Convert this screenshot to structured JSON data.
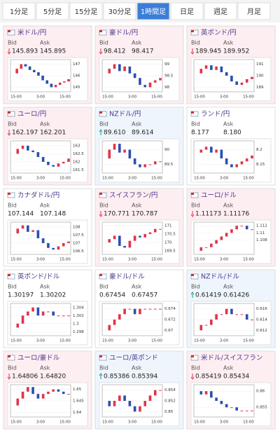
{
  "tabs": [
    "1分足",
    "5分足",
    "15分足",
    "30分足",
    "1時間足",
    "日足",
    "週足",
    "月足"
  ],
  "selected_tab": 4,
  "labels": {
    "bid": "Bid",
    "ask": "Ask"
  },
  "xticks": [
    "15:00",
    "3:00",
    "15:00"
  ],
  "panels": [
    {
      "title": "米ドル/円",
      "dir": "down",
      "bid": "145.893",
      "ask": "145.895",
      "ylim": [
        144.6,
        147.4
      ],
      "yticks": [
        147,
        146,
        145
      ],
      "closes": [
        146.2,
        146.6,
        147.0,
        146.8,
        146.5,
        146.3,
        146.0,
        145.6,
        145.3,
        145.0,
        145.2,
        145.4,
        145.5,
        145.7
      ]
    },
    {
      "title": "豪ドル/円",
      "dir": "down",
      "bid": "98.412",
      "ask": "98.417",
      "ylim": [
        97.8,
        99.2
      ],
      "yticks": [
        99,
        98.5,
        98
      ],
      "closes": [
        98.6,
        98.8,
        99.0,
        98.7,
        98.9,
        98.6,
        98.4,
        98.1,
        98.0,
        98.2,
        98.3,
        98.4
      ]
    },
    {
      "title": "英ポンド/円",
      "dir": "down",
      "bid": "189.945",
      "ask": "189.952",
      "ylim": [
        188.6,
        191.4
      ],
      "yticks": [
        191,
        190,
        189
      ],
      "closes": [
        190.2,
        190.6,
        190.9,
        190.5,
        190.8,
        190.3,
        190.0,
        189.5,
        189.2,
        189.4,
        189.7,
        189.9
      ]
    },
    {
      "title": "ユーロ/円",
      "dir": "down",
      "bid": "162.197",
      "ask": "162.201",
      "ylim": [
        161.3,
        163.3
      ],
      "yticks": [
        163,
        162.5,
        162,
        161.5
      ],
      "closes": [
        162.5,
        162.8,
        163.0,
        162.7,
        162.6,
        162.3,
        162.0,
        161.8,
        161.7,
        161.9,
        162.0,
        162.2
      ]
    },
    {
      "title": "NZドル/円",
      "dir": "up",
      "bid": "89.610",
      "ask": "89.614",
      "ylim": [
        89.2,
        90.3
      ],
      "yticks": [
        90,
        89.5
      ],
      "closes": [
        89.7,
        90.0,
        90.2,
        89.9,
        90.0,
        89.7,
        89.5,
        89.4,
        89.5,
        89.5,
        89.6,
        89.6
      ]
    },
    {
      "title": "ランド/円",
      "dir": "none",
      "bid": "8.177",
      "ask": "8.180",
      "ylim": [
        8.12,
        8.23
      ],
      "yticks": [
        8.2,
        8.15
      ],
      "closes": [
        8.19,
        8.2,
        8.21,
        8.19,
        8.2,
        8.17,
        8.15,
        8.14,
        8.15,
        8.16,
        8.17,
        8.18
      ]
    },
    {
      "title": "カナダドル/円",
      "dir": "none",
      "bid": "107.144",
      "ask": "107.148",
      "ylim": [
        106.3,
        108.3
      ],
      "yticks": [
        108,
        107.5,
        107,
        106.5
      ],
      "closes": [
        107.6,
        107.9,
        108.1,
        107.7,
        107.8,
        107.3,
        107.0,
        106.7,
        106.6,
        106.8,
        107.0,
        107.1
      ]
    },
    {
      "title": "スイスフラン/円",
      "dir": "down",
      "bid": "170.771",
      "ask": "170.787",
      "ylim": [
        169.3,
        171.2
      ],
      "yticks": [
        171,
        170.5,
        170,
        169.5
      ],
      "closes": [
        170.0,
        170.2,
        170.4,
        169.8,
        169.7,
        170.1,
        170.4,
        170.3,
        170.5,
        170.6,
        170.8,
        170.8
      ]
    },
    {
      "title": "ユーロ/ドル",
      "dir": "down",
      "bid": "1.11173",
      "ask": "1.11176",
      "ylim": [
        1.104,
        1.113
      ],
      "yticks": [
        1.112,
        1.11,
        1.108
      ],
      "closes": [
        1.105,
        1.106,
        1.106,
        1.107,
        1.108,
        1.109,
        1.11,
        1.111,
        1.112,
        1.112,
        1.111,
        1.111
      ]
    },
    {
      "title": "英ポンド/ドル",
      "dir": "none",
      "bid": "1.30197",
      "ask": "1.30202",
      "ylim": [
        1.297,
        1.305
      ],
      "yticks": [
        1.304,
        1.302,
        1.3,
        1.298
      ],
      "closes": [
        1.299,
        1.3,
        1.302,
        1.303,
        1.304,
        1.302,
        1.303,
        1.303,
        1.302,
        1.302,
        1.302,
        1.302
      ]
    },
    {
      "title": "豪ドル/ドル",
      "dir": "none",
      "bid": "0.67454",
      "ask": "0.67457",
      "ylim": [
        0.669,
        0.675
      ],
      "yticks": [
        0.674,
        0.672,
        0.67
      ],
      "closes": [
        0.67,
        0.671,
        0.672,
        0.673,
        0.674,
        0.674,
        0.673,
        0.674,
        0.674,
        0.674,
        0.674,
        0.674
      ]
    },
    {
      "title": "NZドル/ドル",
      "dir": "up",
      "bid": "0.61419",
      "ask": "0.61426",
      "ylim": [
        0.611,
        0.617
      ],
      "yticks": [
        0.616,
        0.614,
        0.612
      ],
      "closes": [
        0.612,
        0.613,
        0.613,
        0.614,
        0.615,
        0.615,
        0.616,
        0.615,
        0.615,
        0.615,
        0.614,
        0.614
      ]
    },
    {
      "title": "ユーロ/豪ドル",
      "dir": "down",
      "bid": "1.64806",
      "ask": "1.64820",
      "ylim": [
        1.638,
        1.652
      ],
      "yticks": [
        1.65,
        1.645,
        1.64
      ],
      "closes": [
        1.643,
        1.646,
        1.649,
        1.651,
        1.648,
        1.646,
        1.648,
        1.649,
        1.65,
        1.649,
        1.648,
        1.648
      ]
    },
    {
      "title": "ユーロ/英ポンド",
      "dir": "up",
      "bid": "0.85386",
      "ask": "0.85394",
      "ylim": [
        0.849,
        0.855
      ],
      "yticks": [
        0.854,
        0.852,
        0.85
      ],
      "closes": [
        0.852,
        0.851,
        0.852,
        0.853,
        0.852,
        0.851,
        0.85,
        0.851,
        0.852,
        0.853,
        0.854,
        0.854
      ]
    },
    {
      "title": "米ドル/スイスフラン",
      "dir": "down",
      "bid": "0.85419",
      "ask": "0.85434",
      "ylim": [
        0.852,
        0.862
      ],
      "yticks": [
        0.86,
        0.855
      ],
      "closes": [
        0.86,
        0.859,
        0.86,
        0.858,
        0.857,
        0.856,
        0.855,
        0.855,
        0.854,
        0.854,
        0.854,
        0.854
      ]
    }
  ]
}
